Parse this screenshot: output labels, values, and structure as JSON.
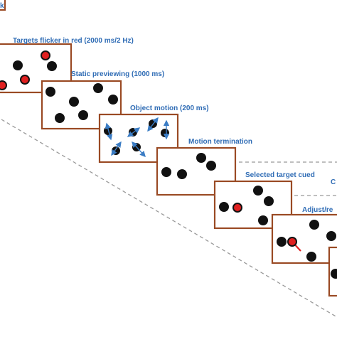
{
  "steps": [
    {
      "label": "k"
    },
    {
      "label": "Targets flicker in red  (2000 ms/2 Hz)"
    },
    {
      "label": "Static previewing (1000 ms)"
    },
    {
      "label": "Object motion (200 ms)"
    },
    {
      "label": "Motion termination"
    },
    {
      "label": "Selected target cued"
    },
    {
      "label": "C"
    },
    {
      "label": "Adjust/re"
    }
  ]
}
